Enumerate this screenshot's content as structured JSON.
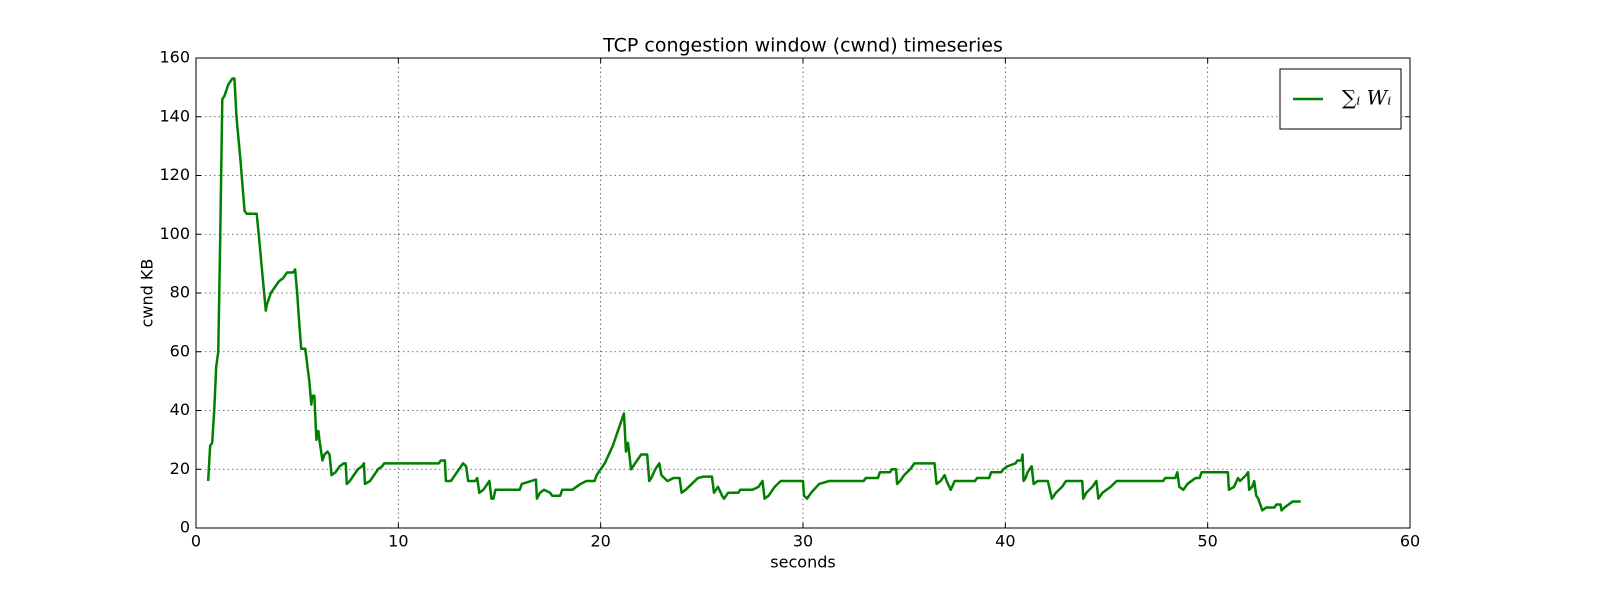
{
  "chart_data": {
    "type": "line",
    "title": "TCP congestion window (cwnd) timeseries",
    "x_label": "seconds",
    "y_label": "cwnd KB",
    "xlim": [
      0,
      60
    ],
    "xticks": [
      0,
      10,
      20,
      30,
      40,
      50,
      60
    ],
    "ylim": [
      0,
      160
    ],
    "yticks": [
      0,
      20,
      40,
      60,
      80,
      100,
      120,
      140,
      160
    ],
    "grid": true,
    "legend": "upper right",
    "x": [
      0.6,
      0.7,
      0.8,
      0.9,
      1.0,
      1.1,
      1.2,
      1.3,
      1.4,
      1.5,
      1.6,
      1.7,
      1.8,
      1.9,
      2.0,
      2.2,
      2.4,
      2.5,
      3.0,
      3.1,
      3.3,
      3.45,
      3.5,
      3.7,
      3.9,
      4.1,
      4.3,
      4.5,
      4.8,
      4.9,
      5.0,
      5.1,
      5.2,
      5.4,
      5.6,
      5.7,
      5.75,
      5.85,
      5.95,
      6.05,
      6.1,
      6.25,
      6.35,
      6.5,
      6.6,
      6.7,
      6.9,
      7.1,
      7.3,
      7.4,
      7.45,
      7.6,
      7.8,
      8.0,
      8.2,
      8.3,
      8.35,
      8.6,
      8.8,
      9.0,
      9.2,
      9.3,
      12.0,
      12.1,
      12.3,
      12.35,
      12.6,
      12.8,
      13.0,
      13.2,
      13.35,
      13.45,
      13.8,
      13.9,
      14.0,
      14.2,
      14.4,
      14.5,
      14.6,
      14.7,
      14.8,
      16.0,
      16.1,
      16.8,
      16.85,
      17.0,
      17.2,
      17.5,
      17.6,
      17.7,
      18.0,
      18.1,
      18.6,
      19.0,
      19.3,
      19.7,
      19.8,
      20.0,
      20.2,
      20.4,
      20.6,
      20.8,
      21.0,
      21.15,
      21.25,
      21.35,
      21.5,
      21.7,
      21.9,
      22.0,
      22.3,
      22.4,
      22.5,
      22.7,
      22.9,
      23.0,
      23.3,
      23.6,
      23.9,
      24.0,
      24.2,
      24.5,
      24.8,
      25.1,
      25.5,
      25.6,
      25.8,
      26.0,
      26.1,
      26.3,
      26.8,
      26.9,
      27.5,
      27.8,
      28.0,
      28.1,
      28.3,
      28.6,
      28.9,
      30.0,
      30.05,
      30.2,
      30.4,
      30.8,
      31.3,
      33.0,
      33.1,
      33.7,
      33.8,
      34.3,
      34.4,
      34.6,
      34.65,
      34.8,
      35.0,
      35.3,
      35.5,
      36.5,
      36.6,
      36.8,
      37.0,
      37.1,
      37.3,
      37.5,
      38.5,
      38.6,
      39.2,
      39.3,
      39.8,
      39.9,
      40.1,
      40.5,
      40.6,
      40.8,
      40.85,
      40.9,
      41.0,
      41.1,
      41.2,
      41.3,
      41.4,
      41.6,
      42.1,
      42.2,
      42.3,
      42.5,
      42.8,
      43.0,
      43.8,
      43.85,
      44.0,
      44.3,
      44.5,
      44.6,
      44.8,
      45.2,
      45.5,
      47.8,
      47.9,
      48.4,
      48.5,
      48.6,
      48.8,
      49.0,
      49.4,
      49.6,
      49.7,
      51.0,
      51.05,
      51.3,
      51.5,
      51.6,
      51.9,
      52.0,
      52.05,
      52.2,
      52.3,
      52.4,
      52.5,
      52.6,
      52.7,
      52.9,
      53.3,
      53.4,
      53.6,
      53.65,
      53.8,
      54.0,
      54.2,
      54.6
    ],
    "series": [
      {
        "name": "∑ᵢ Wᵢ",
        "color": "#008000",
        "values": [
          16,
          28,
          29,
          40,
          55,
          60,
          100,
          146,
          147,
          149,
          151,
          152,
          153,
          153,
          140,
          125,
          108,
          107,
          107,
          100,
          85,
          74,
          76,
          80,
          82,
          84,
          85,
          87,
          87,
          88,
          80,
          70,
          61,
          61,
          50,
          42,
          45,
          45,
          30,
          33,
          30,
          23,
          25,
          26,
          25,
          18,
          19,
          21,
          22,
          22,
          15,
          16,
          18,
          20,
          21,
          22,
          15,
          16,
          18,
          20,
          21,
          22,
          22,
          23,
          23,
          16,
          16,
          18,
          20,
          22,
          21,
          16,
          16,
          17,
          12,
          13,
          15,
          16,
          10,
          10,
          13,
          13,
          15,
          16.5,
          10,
          12,
          13,
          12,
          11,
          11,
          11,
          13,
          13,
          15,
          16,
          16,
          18,
          20,
          22,
          25,
          28,
          32,
          36,
          39,
          26,
          29,
          20,
          22,
          24,
          25,
          25,
          16,
          17,
          20,
          22,
          18,
          16,
          17,
          17,
          12,
          13,
          15,
          17,
          17.5,
          17.5,
          12,
          14,
          11,
          10,
          12,
          12,
          13,
          13,
          14,
          16,
          10,
          11,
          14,
          16,
          16,
          11,
          10,
          12,
          15,
          16,
          16,
          17,
          17,
          19,
          19,
          20,
          20,
          15,
          16,
          18,
          20,
          22,
          22,
          15,
          16,
          18,
          16,
          13,
          16,
          16,
          17,
          17,
          19,
          19,
          20,
          21,
          22,
          23,
          23,
          25,
          16,
          17,
          19,
          20,
          21,
          15,
          16,
          16,
          13,
          10,
          12,
          14,
          16,
          16,
          10,
          12,
          14,
          16,
          10,
          12,
          14,
          16,
          16,
          17,
          17,
          19,
          14,
          13,
          15,
          17,
          17,
          19,
          19,
          13,
          14,
          17,
          16,
          18,
          19,
          13,
          14,
          16,
          11,
          10,
          8,
          6,
          7,
          7,
          8,
          8,
          6,
          7,
          8,
          9,
          9
        ]
      }
    ]
  }
}
